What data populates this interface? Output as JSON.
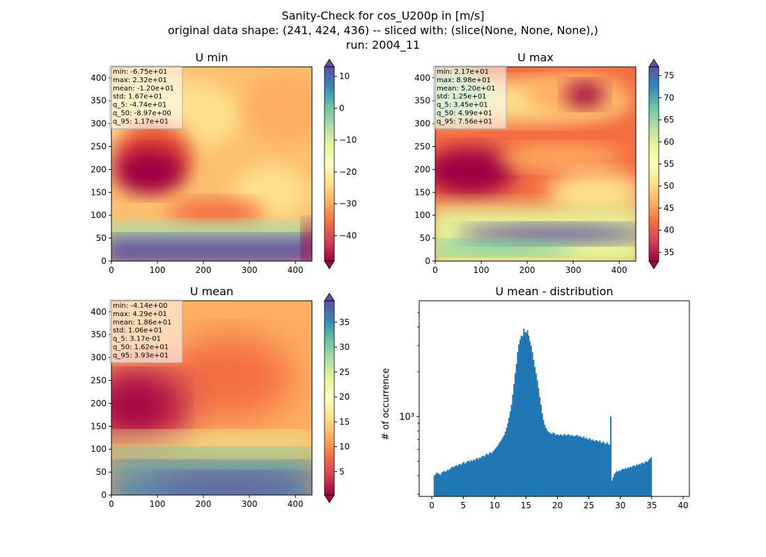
{
  "figure": {
    "title_lines": [
      "Sanity-Check for cos_U200p in [m/s]",
      "original data shape: (241, 424, 436) -- sliced with: (slice(None, None, None),)",
      "run: 2004_11"
    ]
  },
  "colormap": {
    "name": "Spectral",
    "stops": [
      "#9e0142",
      "#d53e4f",
      "#f46d43",
      "#fdae61",
      "#fee08b",
      "#ffffbf",
      "#e6f598",
      "#abdda4",
      "#66c2a5",
      "#3288bd",
      "#5e4fa2"
    ]
  },
  "chart_data": [
    {
      "type": "heatmap",
      "title": "U min",
      "xlim": [
        0,
        436
      ],
      "ylim": [
        0,
        424
      ],
      "x_ticks": [
        "0",
        "100",
        "200",
        "300",
        "400"
      ],
      "y_ticks": [
        "0",
        "50",
        "100",
        "150",
        "200",
        "250",
        "300",
        "350",
        "400"
      ],
      "colorbar": {
        "range": [
          -48,
          13
        ],
        "ticks": [
          "−40",
          "−30",
          "−20",
          "−10",
          "0",
          "10"
        ],
        "tick_values": [
          -40,
          -30,
          -20,
          -10,
          0,
          10
        ],
        "extend": "both"
      },
      "stats": [
        "min: -6.75e+01",
        "max: 2.32e+01",
        "mean: -1.20e+01",
        "std: 1.67e+01",
        "q_5: -4.74e+01",
        "q_50: -8.97e+00",
        "q_95: 1.17e+01"
      ]
    },
    {
      "type": "heatmap",
      "title": "U max",
      "xlim": [
        0,
        436
      ],
      "ylim": [
        0,
        424
      ],
      "x_ticks": [
        "0",
        "100",
        "200",
        "300",
        "400"
      ],
      "y_ticks": [
        "0",
        "50",
        "100",
        "150",
        "200",
        "250",
        "300",
        "350",
        "400"
      ],
      "colorbar": {
        "range": [
          33,
          77
        ],
        "ticks": [
          "35",
          "40",
          "45",
          "50",
          "55",
          "60",
          "65",
          "70",
          "75"
        ],
        "tick_values": [
          35,
          40,
          45,
          50,
          55,
          60,
          65,
          70,
          75
        ],
        "extend": "both"
      },
      "stats": [
        "min: 2.17e+01",
        "max: 8.98e+01",
        "mean: 5.20e+01",
        "std: 1.25e+01",
        "q_5: 3.45e+01",
        "q_50: 4.99e+01",
        "q_95: 7.56e+01"
      ]
    },
    {
      "type": "heatmap",
      "title": "U mean",
      "xlim": [
        0,
        436
      ],
      "ylim": [
        0,
        424
      ],
      "x_ticks": [
        "0",
        "100",
        "200",
        "300",
        "400"
      ],
      "y_ticks": [
        "0",
        "50",
        "100",
        "150",
        "200",
        "250",
        "300",
        "350",
        "400"
      ],
      "colorbar": {
        "range": [
          0.3,
          39.3
        ],
        "ticks": [
          "5",
          "10",
          "15",
          "20",
          "25",
          "30",
          "35"
        ],
        "tick_values": [
          5,
          10,
          15,
          20,
          25,
          30,
          35
        ],
        "extend": "both"
      },
      "stats": [
        "min: -4.14e+00",
        "max: 4.29e+01",
        "mean: 1.86e+01",
        "std: 1.06e+01",
        "q_5: 3.17e-01",
        "q_50: 1.62e+01",
        "q_95: 3.93e+01"
      ]
    },
    {
      "type": "bar",
      "title": "U mean - distribution",
      "ylabel": "# of occurrence",
      "yscale": "log",
      "xlim": [
        -2,
        41
      ],
      "ylim": [
        290,
        6000
      ],
      "x_ticks": [
        "0",
        "5",
        "10",
        "15",
        "20",
        "25",
        "30",
        "35",
        "40"
      ],
      "x_tick_values": [
        0,
        5,
        10,
        15,
        20,
        25,
        30,
        35,
        40
      ],
      "y_ticks": [
        "10³"
      ],
      "y_tick_values": [
        1000
      ],
      "color": "#1f77b4",
      "bins": {
        "start": 0.3,
        "width": 0.195
      },
      "values": [
        400,
        410,
        420,
        415,
        410,
        405,
        420,
        425,
        430,
        425,
        430,
        440,
        435,
        445,
        455,
        460,
        455,
        465,
        470,
        465,
        475,
        480,
        470,
        485,
        495,
        480,
        490,
        500,
        505,
        495,
        510,
        500,
        515,
        505,
        520,
        525,
        515,
        530,
        525,
        540,
        545,
        535,
        555,
        560,
        550,
        570,
        575,
        565,
        585,
        595,
        610,
        625,
        640,
        660,
        680,
        700,
        725,
        750,
        790,
        840,
        900,
        980,
        1080,
        1200,
        1400,
        1650,
        1950,
        2250,
        2700,
        3050,
        3300,
        3500,
        3450,
        3900,
        3700,
        3650,
        3800,
        3500,
        3200,
        3000,
        2700,
        2400,
        2150,
        1950,
        1750,
        1550,
        1350,
        1200,
        1050,
        950,
        880,
        840,
        810,
        790,
        780,
        770,
        760,
        780,
        770,
        750,
        760,
        755,
        745,
        760,
        750,
        740,
        765,
        750,
        745,
        760,
        755,
        740,
        750,
        745,
        735,
        740,
        750,
        745,
        730,
        740,
        725,
        720,
        735,
        710,
        720,
        700,
        705,
        715,
        690,
        700,
        690,
        680,
        695,
        685,
        675,
        690,
        670,
        665,
        680,
        660,
        655,
        670,
        650,
        645,
        1000,
        370,
        390,
        410,
        420,
        430,
        425,
        435,
        430,
        440,
        445,
        440,
        450,
        445,
        455,
        450,
        460,
        455,
        465,
        470,
        460,
        475,
        470,
        480,
        475,
        485,
        490,
        480,
        495,
        500,
        495,
        510,
        520,
        530
      ]
    }
  ]
}
